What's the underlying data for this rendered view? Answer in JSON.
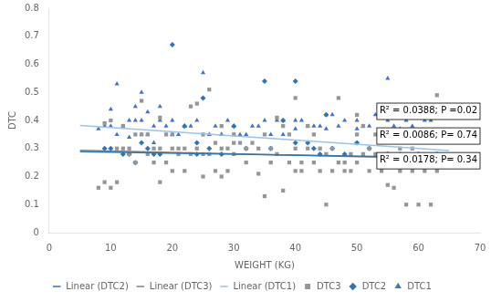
{
  "chart_data": {
    "type": "scatter",
    "xlabel": "WEIGHT (KG)",
    "ylabel": "DTC",
    "xlim": [
      0,
      70
    ],
    "ylim": [
      0,
      0.8
    ],
    "xticks": [
      0,
      10,
      20,
      30,
      40,
      50,
      60,
      70
    ],
    "yticks": [
      0,
      0.1,
      0.2,
      0.3,
      0.4,
      0.5,
      0.6,
      0.7,
      0.8
    ],
    "grid": false,
    "legend": "bottom",
    "annotations": [
      "R² = 0.0388; P =0.02",
      "R² = 0.0086; P= 0.74",
      "R² = 0.0178; P= 0.34"
    ],
    "series": [
      {
        "name": "DTC1",
        "type": "scatter",
        "marker": "triangle",
        "color": "#4472C4",
        "x": [
          8,
          9,
          10,
          10,
          11,
          11,
          12,
          13,
          13,
          14,
          14,
          15,
          15,
          15,
          16,
          16,
          17,
          17,
          18,
          18,
          19,
          20,
          20,
          21,
          22,
          22,
          23,
          24,
          25,
          26,
          27,
          28,
          28,
          29,
          30,
          30,
          31,
          32,
          33,
          34,
          35,
          36,
          37,
          38,
          38,
          40,
          40,
          41,
          42,
          43,
          44,
          45,
          45,
          46,
          47,
          48,
          50,
          50,
          51,
          52,
          53,
          54,
          55,
          55,
          56,
          57,
          58,
          59,
          60,
          61,
          62
        ],
        "values": [
          0.37,
          0.38,
          0.38,
          0.44,
          0.35,
          0.53,
          0.38,
          0.34,
          0.4,
          0.4,
          0.45,
          0.35,
          0.4,
          0.5,
          0.35,
          0.43,
          0.38,
          0.32,
          0.4,
          0.45,
          0.38,
          0.35,
          0.4,
          0.35,
          0.38,
          0.38,
          0.38,
          0.4,
          0.57,
          0.35,
          0.38,
          0.35,
          0.35,
          0.4,
          0.38,
          0.35,
          0.35,
          0.35,
          0.38,
          0.38,
          0.4,
          0.35,
          0.4,
          0.35,
          0.4,
          0.37,
          0.4,
          0.4,
          0.38,
          0.38,
          0.38,
          0.37,
          0.42,
          0.42,
          0.38,
          0.4,
          0.4,
          0.37,
          0.38,
          0.38,
          0.42,
          0.42,
          0.55,
          0.4,
          0.38,
          0.37,
          0.4,
          0.38,
          0.32,
          0.4,
          0.4
        ]
      },
      {
        "name": "DTC2",
        "type": "scatter",
        "marker": "diamond",
        "color": "#2E75B6",
        "x": [
          9,
          10,
          12,
          13,
          14,
          15,
          16,
          17,
          18,
          20,
          22,
          24,
          24,
          25,
          26,
          28,
          30,
          32,
          35,
          36,
          38,
          40,
          40,
          42,
          43,
          44,
          45,
          46,
          48,
          50,
          52,
          55,
          57,
          60,
          63
        ],
        "values": [
          0.3,
          0.3,
          0.28,
          0.28,
          0.25,
          0.32,
          0.3,
          0.28,
          0.28,
          0.67,
          0.38,
          0.32,
          0.28,
          0.48,
          0.3,
          0.28,
          0.38,
          0.3,
          0.54,
          0.3,
          0.4,
          0.54,
          0.32,
          0.32,
          0.3,
          0.28,
          0.42,
          0.3,
          0.28,
          0.32,
          0.3,
          0.28,
          0.28,
          0.28,
          0.28
        ]
      },
      {
        "name": "DTC3",
        "type": "scatter",
        "marker": "square",
        "color": "#969696",
        "x": [
          8,
          9,
          9,
          10,
          10,
          11,
          11,
          12,
          12,
          13,
          13,
          14,
          14,
          15,
          15,
          16,
          16,
          17,
          17,
          18,
          18,
          18,
          19,
          19,
          20,
          20,
          20,
          21,
          21,
          22,
          22,
          23,
          23,
          24,
          24,
          25,
          25,
          25,
          26,
          26,
          27,
          27,
          28,
          28,
          28,
          29,
          29,
          30,
          30,
          30,
          31,
          32,
          32,
          33,
          34,
          34,
          35,
          35,
          36,
          36,
          37,
          37,
          38,
          38,
          39,
          39,
          40,
          40,
          40,
          41,
          41,
          42,
          42,
          43,
          43,
          44,
          44,
          45,
          45,
          46,
          46,
          47,
          47,
          48,
          48,
          49,
          49,
          50,
          50,
          50,
          51,
          51,
          52,
          52,
          53,
          53,
          54,
          54,
          55,
          55,
          56,
          56,
          57,
          57,
          58,
          58,
          59,
          59,
          60,
          60,
          61,
          61,
          62,
          62,
          63,
          63
        ],
        "values": [
          0.16,
          0.18,
          0.39,
          0.16,
          0.4,
          0.18,
          0.3,
          0.3,
          0.38,
          0.28,
          0.3,
          0.35,
          0.25,
          0.35,
          0.47,
          0.28,
          0.35,
          0.25,
          0.3,
          0.18,
          0.3,
          0.41,
          0.25,
          0.35,
          0.22,
          0.3,
          0.35,
          0.28,
          0.3,
          0.22,
          0.3,
          0.28,
          0.45,
          0.3,
          0.46,
          0.2,
          0.28,
          0.35,
          0.28,
          0.51,
          0.22,
          0.32,
          0.2,
          0.3,
          0.38,
          0.22,
          0.3,
          0.28,
          0.32,
          0.35,
          0.32,
          0.25,
          0.3,
          0.32,
          0.21,
          0.3,
          0.13,
          0.35,
          0.25,
          0.3,
          0.28,
          0.41,
          0.15,
          0.38,
          0.25,
          0.35,
          0.22,
          0.3,
          0.48,
          0.22,
          0.25,
          0.3,
          0.38,
          0.25,
          0.35,
          0.22,
          0.3,
          0.1,
          0.28,
          0.22,
          0.3,
          0.25,
          0.48,
          0.22,
          0.25,
          0.22,
          0.28,
          0.25,
          0.35,
          0.42,
          0.28,
          0.38,
          0.22,
          0.3,
          0.28,
          0.35,
          0.22,
          0.25,
          0.17,
          0.28,
          0.16,
          0.25,
          0.22,
          0.3,
          0.1,
          0.25,
          0.22,
          0.3,
          0.1,
          0.25,
          0.22,
          0.35,
          0.1,
          0.25,
          0.49,
          0.22
        ]
      },
      {
        "name": "Linear (DTC2)",
        "type": "line",
        "color": "#2E75B6",
        "x": [
          5,
          65
        ],
        "values": [
          0.28825,
          0.26725
        ]
      },
      {
        "name": "Linear (DTC3)",
        "type": "line",
        "color": "#808080",
        "x": [
          5,
          65
        ],
        "values": [
          0.2935,
          0.2635
        ]
      },
      {
        "name": "Linear (DTC1)",
        "type": "line",
        "color": "#9DC3E6",
        "x": [
          5,
          65
        ],
        "values": [
          0.3825,
          0.2925
        ]
      }
    ]
  }
}
